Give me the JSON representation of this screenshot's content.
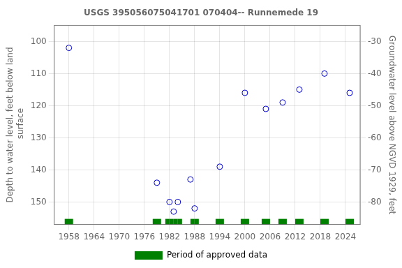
{
  "chart_data": {
    "type": "scatter",
    "title": "USGS 395056075041701 070404-- Runnemede 19",
    "y_label": "Depth to water level, feet below land\n surface",
    "y2_label": "Groundwater level above NGVD 1929, feet",
    "x": [
      1958,
      1979,
      1982,
      1983,
      1984,
      1987,
      1988,
      1994,
      2000,
      2005,
      2009,
      2013,
      2019,
      2025
    ],
    "series": [
      {
        "type": "scatter",
        "color": "#0000cc",
        "marker": "open circle",
        "values": [
          102,
          144,
          150,
          153,
          150,
          143,
          152,
          139,
          116,
          121,
          119,
          115,
          110,
          116
        ]
      },
      {
        "type": "span",
        "name": "Period of approved data",
        "color": "#008000",
        "ranges": [
          [
            1957,
            1959
          ],
          [
            1978,
            1980
          ],
          [
            1981,
            1982
          ],
          [
            1982,
            1983
          ],
          [
            1983,
            1984
          ],
          [
            1984,
            1985
          ],
          [
            1987,
            1988
          ],
          [
            1988,
            1989
          ],
          [
            1993,
            1995
          ],
          [
            1999,
            2001
          ],
          [
            2004,
            2006
          ],
          [
            2008,
            2010
          ],
          [
            2012,
            2014
          ],
          [
            2018,
            2020
          ],
          [
            2024,
            2026
          ]
        ]
      }
    ],
    "xlim": [
      1954.5,
      2027.5
    ],
    "xticks": [
      1958,
      1964,
      1970,
      1976,
      1982,
      1988,
      1994,
      2000,
      2006,
      2012,
      2018,
      2024
    ],
    "ylim": [
      157,
      95
    ],
    "yticks": [
      100,
      110,
      120,
      130,
      140,
      150
    ],
    "y2lim": [
      -87,
      -25
    ],
    "y2ticks": [
      -30,
      -40,
      -50,
      -60,
      -70,
      -80
    ],
    "grid": true,
    "legend": "bottom"
  }
}
